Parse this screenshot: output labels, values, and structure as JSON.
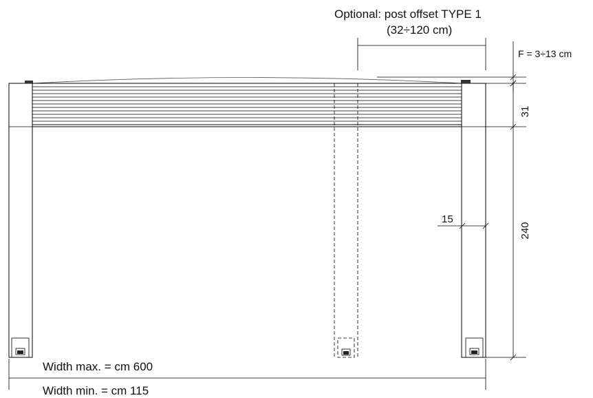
{
  "annotations": {
    "optional_title": "Optional: post offset TYPE 1",
    "optional_range": "(32÷120 cm)",
    "f_range": "F = 3÷13 cm",
    "dim_31": "31",
    "dim_240": "240",
    "dim_15": "15",
    "width_max": "Width max. = cm 600",
    "width_min": "Width min. = cm 115"
  }
}
